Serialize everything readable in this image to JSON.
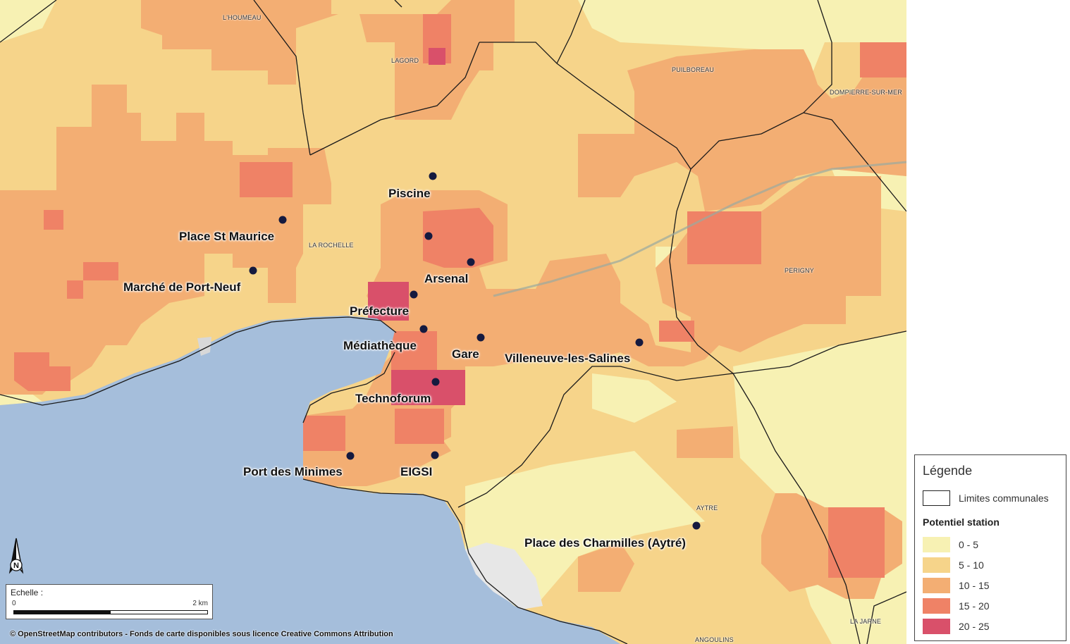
{
  "map": {
    "stations": [
      {
        "label": "Piscine"
      },
      {
        "label": "Place St Maurice"
      },
      {
        "label": "Arsenal"
      },
      {
        "label": "Marché de Port-Neuf"
      },
      {
        "label": "Préfecture"
      },
      {
        "label": "Médiathèque"
      },
      {
        "label": "Gare"
      },
      {
        "label": "Villeneuve-les-Salines"
      },
      {
        "label": "Technoforum"
      },
      {
        "label": "Port des Minimes"
      },
      {
        "label": "EIGSI"
      },
      {
        "label": "Place des Charmilles (Aytré)"
      }
    ],
    "places": [
      {
        "label": "L'HOUMEAU"
      },
      {
        "label": "LAGORD"
      },
      {
        "label": "PUILBOREAU"
      },
      {
        "label": "DOMPIERRE-SUR-MER"
      },
      {
        "label": "LA ROCHELLE"
      },
      {
        "label": "PERIGNY"
      },
      {
        "label": "AYTRE"
      },
      {
        "label": "LA JARNE"
      },
      {
        "label": "ANGOULINS"
      }
    ],
    "colors": {
      "sea": "#a5bedb",
      "class_0_5": "#f7f1b3",
      "class_5_10": "#f6d48a",
      "class_10_15": "#f3ae73",
      "class_15_20": "#ef8266",
      "class_20_25": "#d9506a",
      "station_dot": "#151a3f"
    }
  },
  "scale": {
    "title": "Echelle :",
    "zero": "0",
    "max": "2 km"
  },
  "north_label": "N",
  "attribution": "© OpenStreetMap contributors - Fonds de carte disponibles sous licence Creative Commons Attribution",
  "legend": {
    "title": "Légende",
    "limits_label": "Limites communales",
    "subtitle": "Potentiel station",
    "classes": [
      {
        "label": "0 - 5",
        "color": "#f7f1b3"
      },
      {
        "label": "5 - 10",
        "color": "#f6d48a"
      },
      {
        "label": "10 - 15",
        "color": "#f3ae73"
      },
      {
        "label": "15 - 20",
        "color": "#ef8266"
      },
      {
        "label": "20 - 25",
        "color": "#d9506a"
      }
    ]
  }
}
